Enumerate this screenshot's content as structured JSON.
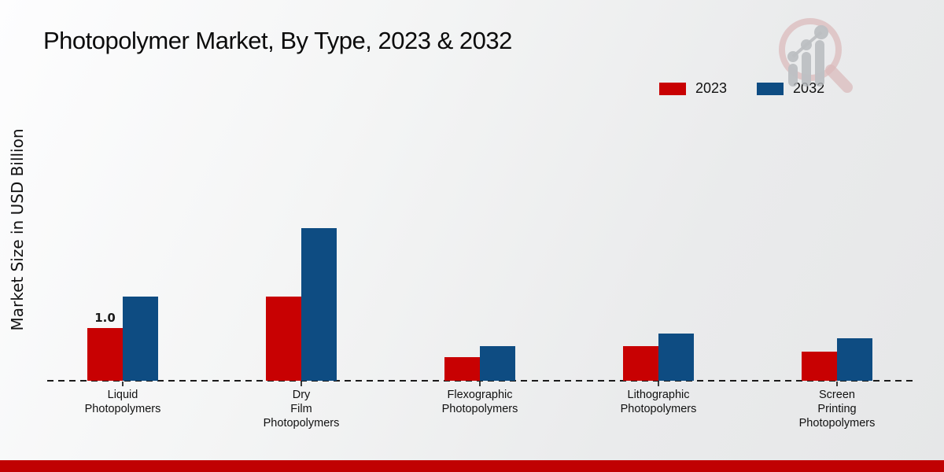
{
  "page": {
    "footer_color": "#c00102",
    "logo_icon": "magnifier-bar-chart-logo"
  },
  "chart_data": {
    "type": "bar",
    "title": "Photopolymer Market, By Type, 2023 & 2032",
    "xlabel": "",
    "ylabel": "Market Size in USD Billion",
    "categories": [
      "Liquid\nPhotopolymers",
      "Dry\nFilm\nPhotopolymers",
      "Flexographic\nPhotopolymers",
      "Lithographic\nPhotopolymers",
      "Screen\nPrinting\nPhotopolymers"
    ],
    "series": [
      {
        "name": "2023",
        "color": "#c80102",
        "values": [
          1.0,
          1.6,
          0.45,
          0.65,
          0.55
        ]
      },
      {
        "name": "2032",
        "color": "#0e4c82",
        "values": [
          1.6,
          2.9,
          0.65,
          0.9,
          0.8
        ]
      }
    ],
    "annotations": [
      {
        "text": "1.0",
        "series": "2023",
        "category_index": 0
      }
    ],
    "legend": {
      "position": "top-right",
      "entries": [
        "2023",
        "2032"
      ]
    },
    "axis": {
      "baseline_style": "dashed",
      "gridlines": false,
      "y_tick_labels_visible": false,
      "ylim": [
        0,
        3
      ]
    }
  }
}
